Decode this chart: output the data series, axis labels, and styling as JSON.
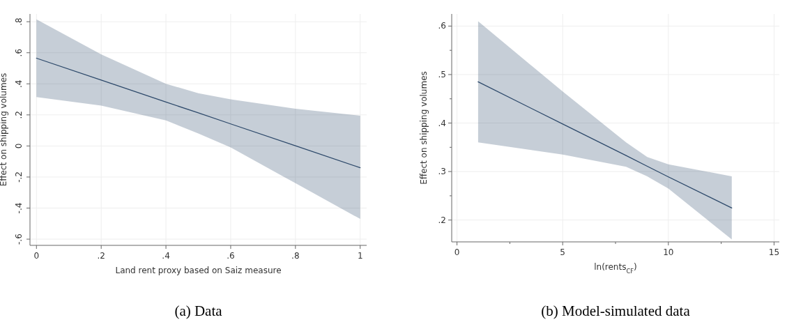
{
  "chart_data": [
    {
      "type": "line",
      "xlabel": "Land rent proxy based on Saiz measure",
      "ylabel": "Effect on shipping volumes",
      "annotations": [
        "(a) Data"
      ],
      "xlim": [
        -0.02,
        1.02
      ],
      "ylim": [
        -0.64,
        0.85
      ],
      "xticks": [
        {
          "value": 0,
          "label": "0"
        },
        {
          "value": 0.2,
          "label": ".2"
        },
        {
          "value": 0.4,
          "label": ".4"
        },
        {
          "value": 0.6,
          "label": ".6"
        },
        {
          "value": 0.8,
          "label": ".8"
        },
        {
          "value": 1,
          "label": "1"
        }
      ],
      "yticks": [
        {
          "value": -0.6,
          "label": "-.6"
        },
        {
          "value": -0.4,
          "label": "-.4"
        },
        {
          "value": -0.2,
          "label": "-.2"
        },
        {
          "value": 0,
          "label": "0"
        },
        {
          "value": 0.2,
          "label": ".2"
        },
        {
          "value": 0.4,
          "label": ".4"
        },
        {
          "value": 0.6,
          "label": ".6"
        },
        {
          "value": 0.8,
          "label": ".8"
        }
      ],
      "grid": true,
      "x": [
        0,
        0.2,
        0.4,
        0.5,
        0.6,
        0.8,
        1
      ],
      "series": [
        {
          "color": "#2e4a6b",
          "values": [
            0.565,
            0.424,
            0.283,
            0.213,
            0.142,
            0.001,
            -0.14
          ],
          "lower": [
            0.315,
            0.26,
            0.165,
            0.08,
            -0.01,
            -0.24,
            -0.47
          ],
          "upper": [
            0.815,
            0.59,
            0.4,
            0.34,
            0.3,
            0.24,
            0.195
          ]
        }
      ]
    },
    {
      "type": "line",
      "xlabel": "ln(rents$_{CF}$)",
      "ylabel": "Effect on shipping volumes",
      "annotations": [
        "(b) Model-simulated data"
      ],
      "xlim": [
        -0.25,
        15.25
      ],
      "ylim": [
        0.155,
        0.625
      ],
      "xticks": [
        0,
        {
          "value": 2.5,
          "label": null
        },
        5,
        {
          "value": 7.5,
          "label": null
        },
        10,
        {
          "value": 12.5,
          "label": null
        },
        15
      ],
      "yticks": [
        {
          "value": 0.2,
          "label": ".2"
        },
        {
          "value": 0.25,
          "label": null
        },
        {
          "value": 0.3,
          "label": ".3"
        },
        {
          "value": 0.35,
          "label": null
        },
        {
          "value": 0.4,
          "label": ".4"
        },
        {
          "value": 0.45,
          "label": null
        },
        {
          "value": 0.5,
          "label": ".5"
        },
        {
          "value": 0.55,
          "label": null
        },
        {
          "value": 0.6,
          "label": ".6"
        }
      ],
      "grid": true,
      "x": [
        1,
        5,
        8,
        9,
        10,
        13
      ],
      "series": [
        {
          "color": "#2e4a6b",
          "values": [
            0.485,
            0.398,
            0.333,
            0.311,
            0.289,
            0.225
          ],
          "lower": [
            0.36,
            0.335,
            0.31,
            0.29,
            0.265,
            0.16
          ],
          "upper": [
            0.61,
            0.465,
            0.36,
            0.33,
            0.315,
            0.29
          ]
        }
      ]
    }
  ]
}
